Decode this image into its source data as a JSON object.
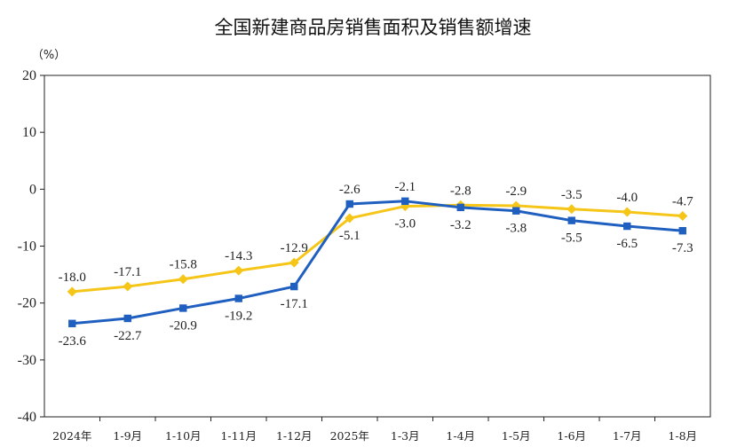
{
  "chart_data": {
    "type": "line",
    "title": "全国新建商品房销售面积及销售额增速",
    "ylabel": "（%）",
    "xlabel": "",
    "ylim": [
      -40,
      20
    ],
    "yticks": [
      20,
      10,
      0,
      -10,
      -20,
      -30,
      -40
    ],
    "grid": false,
    "categories": [
      "2024年",
      "1-9月",
      "1-10月",
      "1-11月",
      "1-12月",
      "2025年",
      "1-3月",
      "1-4月",
      "1-5月",
      "1-6月",
      "1-7月",
      "1-8月"
    ],
    "series": [
      {
        "color": "#F5C518",
        "marker": "diamond",
        "values": [
          -18.0,
          -17.1,
          -15.8,
          -14.3,
          -12.9,
          -5.1,
          -3.0,
          -2.8,
          -2.9,
          -3.5,
          -4.0,
          -4.7
        ],
        "labels": [
          "-18.0",
          "-17.1",
          "-15.8",
          "-14.3",
          "-12.9",
          "-5.1",
          "-3.0",
          "-2.8",
          "-2.9",
          "-3.5",
          "-4.0",
          "-4.7"
        ],
        "label_side": [
          "above",
          "above",
          "above",
          "above",
          "above",
          "below",
          "below",
          "above",
          "above",
          "above",
          "above",
          "above"
        ]
      },
      {
        "color": "#1F5FBF",
        "marker": "square",
        "values": [
          -23.6,
          -22.7,
          -20.9,
          -19.2,
          -17.1,
          -2.6,
          -2.1,
          -3.2,
          -3.8,
          -5.5,
          -6.5,
          -7.3
        ],
        "labels": [
          "-23.6",
          "-22.7",
          "-20.9",
          "-19.2",
          "-17.1",
          "-2.6",
          "-2.1",
          "-3.2",
          "-3.8",
          "-5.5",
          "-6.5",
          "-7.3"
        ],
        "label_side": [
          "below",
          "below",
          "below",
          "below",
          "below",
          "above",
          "above",
          "below",
          "below",
          "below",
          "below",
          "below"
        ]
      }
    ]
  }
}
